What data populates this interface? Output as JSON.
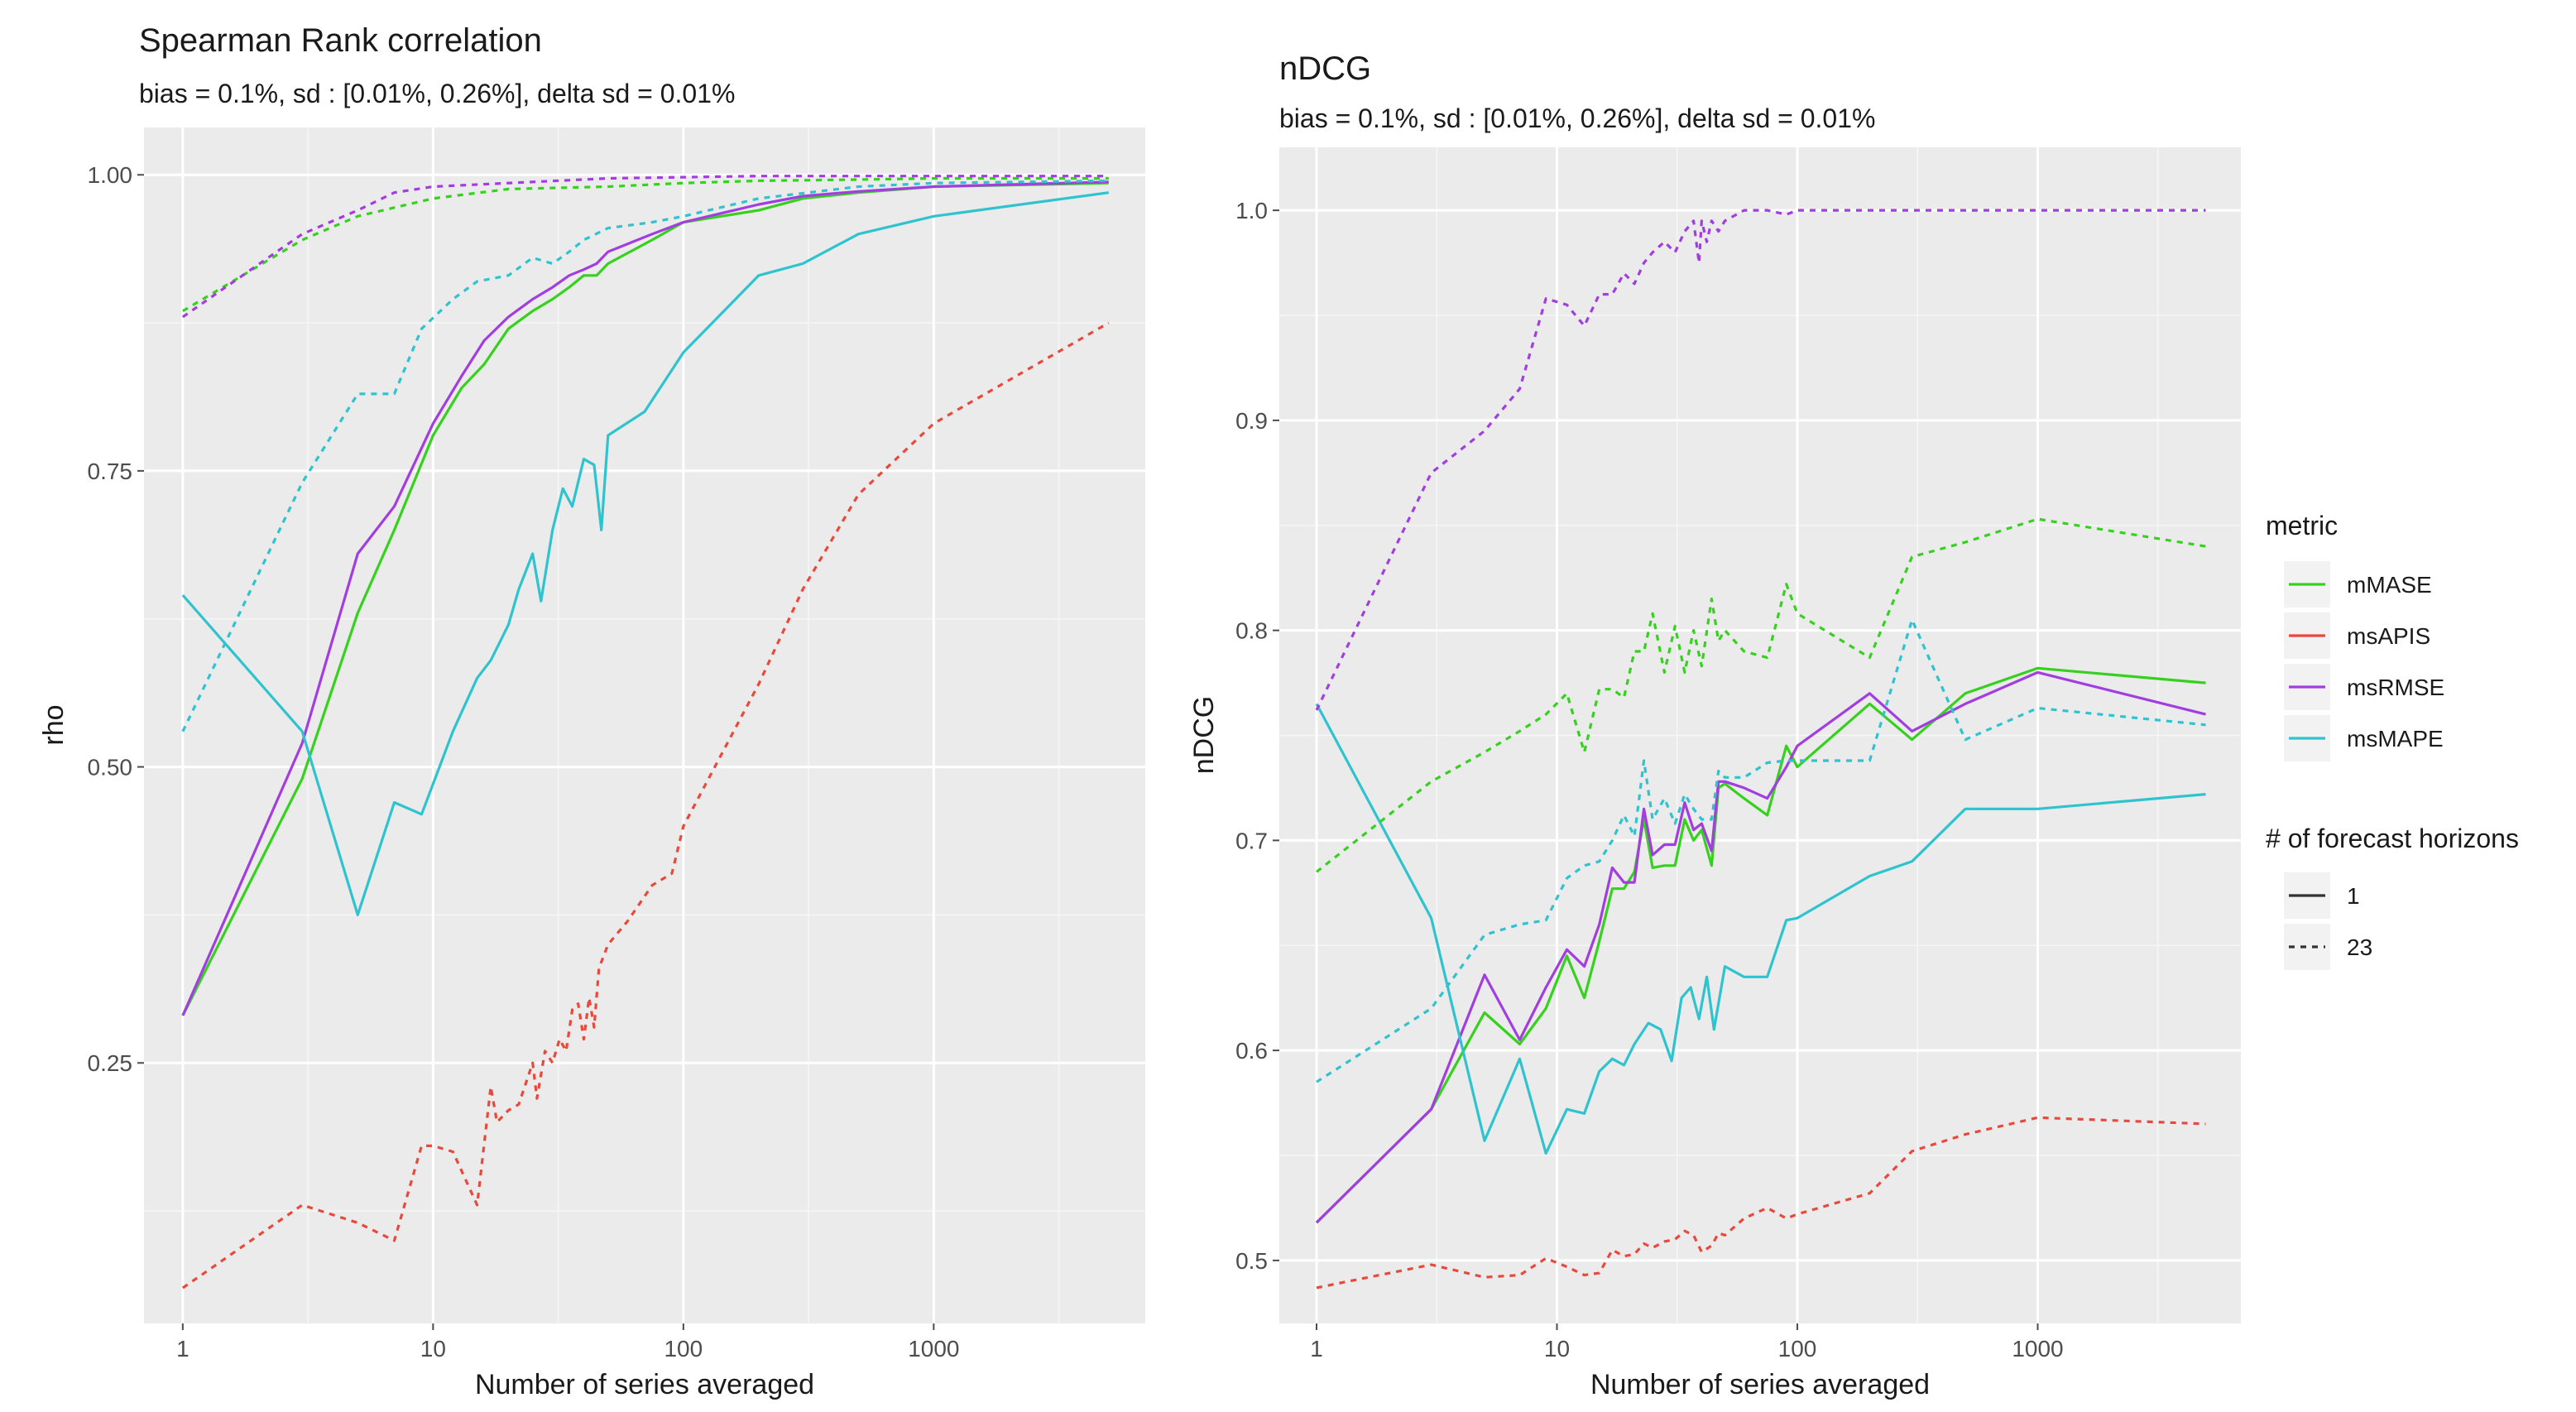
{
  "chart_data": [
    {
      "type": "line",
      "title": "Spearman Rank correlation",
      "subtitle": "bias = 0.1%, sd : [0.01%, 0.26%], delta sd = 0.01%",
      "xlabel": "Number of series averaged",
      "ylabel": "rho",
      "xscale": "log10",
      "xlim": [
        0.7,
        7000
      ],
      "ylim": [
        0.03,
        1.04
      ],
      "xticks": [
        1,
        10,
        100,
        1000
      ],
      "xtick_labels": [
        "1",
        "10",
        "100",
        "1000"
      ],
      "yticks": [
        0.25,
        0.5,
        0.75,
        1.0
      ],
      "ytick_labels": [
        "0.25",
        "0.50",
        "0.75",
        "1.00"
      ],
      "grid": true,
      "series": [
        {
          "name": "mMASE",
          "metric": "mMASE",
          "horizons": "1",
          "color": "#36d11e",
          "x": [
            1,
            3,
            5,
            7,
            10,
            13,
            16,
            20,
            25,
            30,
            35,
            40,
            45,
            50,
            75,
            100,
            200,
            300,
            500,
            1000,
            5000
          ],
          "y": [
            0.29,
            0.49,
            0.63,
            0.7,
            0.78,
            0.82,
            0.84,
            0.87,
            0.885,
            0.895,
            0.905,
            0.915,
            0.915,
            0.925,
            0.945,
            0.96,
            0.97,
            0.98,
            0.985,
            0.99,
            0.993
          ]
        },
        {
          "name": "msRMSE",
          "metric": "msRMSE",
          "horizons": "1",
          "color": "#a23ee0",
          "x": [
            1,
            3,
            5,
            7,
            10,
            13,
            16,
            20,
            25,
            30,
            35,
            40,
            45,
            50,
            75,
            100,
            200,
            300,
            500,
            1000,
            5000
          ],
          "y": [
            0.29,
            0.52,
            0.68,
            0.72,
            0.79,
            0.83,
            0.86,
            0.88,
            0.895,
            0.905,
            0.915,
            0.92,
            0.925,
            0.935,
            0.95,
            0.96,
            0.975,
            0.982,
            0.986,
            0.99,
            0.994
          ]
        },
        {
          "name": "msMAPE",
          "metric": "msMAPE",
          "horizons": "1",
          "color": "#2fc3cf",
          "x": [
            1,
            3,
            5,
            7,
            9,
            12,
            15,
            17,
            20,
            22,
            25,
            27,
            30,
            33,
            36,
            40,
            44,
            47,
            50,
            70,
            100,
            200,
            300,
            500,
            1000,
            5000
          ],
          "y": [
            0.645,
            0.53,
            0.375,
            0.47,
            0.46,
            0.53,
            0.575,
            0.59,
            0.62,
            0.65,
            0.68,
            0.64,
            0.7,
            0.735,
            0.72,
            0.76,
            0.755,
            0.7,
            0.78,
            0.8,
            0.85,
            0.915,
            0.925,
            0.95,
            0.965,
            0.985
          ]
        },
        {
          "name": "mMASE",
          "metric": "mMASE",
          "horizons": "23",
          "color": "#36d11e",
          "x": [
            1,
            3,
            5,
            10,
            20,
            50,
            100,
            200,
            500,
            1000,
            5000
          ],
          "y": [
            0.885,
            0.945,
            0.965,
            0.98,
            0.988,
            0.99,
            0.993,
            0.995,
            0.996,
            0.997,
            0.997
          ]
        },
        {
          "name": "msAPIS",
          "metric": "msAPIS",
          "horizons": "23",
          "color": "#e8493b",
          "x": [
            1,
            3,
            5,
            7,
            9,
            10,
            12,
            15,
            17,
            18,
            20,
            22,
            25,
            26,
            28,
            30,
            32,
            34,
            36,
            38,
            40,
            42,
            44,
            46,
            50,
            60,
            75,
            90,
            100,
            200,
            300,
            500,
            1000,
            5000
          ],
          "y": [
            0.06,
            0.13,
            0.115,
            0.1,
            0.18,
            0.18,
            0.175,
            0.13,
            0.23,
            0.2,
            0.21,
            0.215,
            0.25,
            0.22,
            0.26,
            0.25,
            0.27,
            0.26,
            0.295,
            0.3,
            0.27,
            0.305,
            0.28,
            0.33,
            0.35,
            0.37,
            0.4,
            0.41,
            0.45,
            0.57,
            0.65,
            0.73,
            0.79,
            0.875
          ]
        },
        {
          "name": "msRMSE",
          "metric": "msRMSE",
          "horizons": "23",
          "color": "#a23ee0",
          "x": [
            1,
            3,
            5,
            7,
            10,
            20,
            50,
            100,
            200,
            500,
            1000,
            5000
          ],
          "y": [
            0.88,
            0.95,
            0.97,
            0.985,
            0.99,
            0.993,
            0.997,
            0.998,
            0.999,
            0.999,
            0.999,
            0.999
          ]
        },
        {
          "name": "msMAPE",
          "metric": "msMAPE",
          "horizons": "23",
          "color": "#2fc3cf",
          "x": [
            1,
            3,
            5,
            7,
            9,
            12,
            15,
            20,
            25,
            30,
            35,
            40,
            50,
            75,
            100,
            200,
            500,
            1000,
            5000
          ],
          "y": [
            0.53,
            0.74,
            0.815,
            0.815,
            0.87,
            0.895,
            0.91,
            0.915,
            0.93,
            0.925,
            0.935,
            0.945,
            0.955,
            0.96,
            0.965,
            0.98,
            0.99,
            0.993,
            0.995
          ]
        }
      ]
    },
    {
      "type": "line",
      "title": "nDCG",
      "subtitle": "bias = 0.1%, sd : [0.01%, 0.26%], delta sd = 0.01%",
      "xlabel": "Number of series averaged",
      "ylabel": "nDCG",
      "xscale": "log10",
      "xlim": [
        0.7,
        7000
      ],
      "ylim": [
        0.47,
        1.03
      ],
      "xticks": [
        1,
        10,
        100,
        1000
      ],
      "xtick_labels": [
        "1",
        "10",
        "100",
        "1000"
      ],
      "yticks": [
        0.5,
        0.6,
        0.7,
        0.8,
        0.9,
        1.0
      ],
      "ytick_labels": [
        "0.5",
        "0.6",
        "0.7",
        "0.8",
        "0.9",
        "1.0"
      ],
      "grid": true,
      "series": [
        {
          "name": "mMASE",
          "metric": "mMASE",
          "horizons": "1",
          "color": "#36d11e",
          "x": [
            1,
            3,
            5,
            7,
            9,
            11,
            13,
            15,
            17,
            19,
            21,
            23,
            25,
            28,
            31,
            34,
            37,
            40,
            44,
            47,
            50,
            60,
            75,
            90,
            100,
            200,
            300,
            500,
            1000,
            5000
          ],
          "y": [
            0.518,
            0.572,
            0.618,
            0.603,
            0.62,
            0.645,
            0.625,
            0.652,
            0.677,
            0.677,
            0.685,
            0.71,
            0.687,
            0.688,
            0.688,
            0.71,
            0.7,
            0.705,
            0.688,
            0.725,
            0.727,
            0.72,
            0.712,
            0.745,
            0.735,
            0.765,
            0.748,
            0.77,
            0.782,
            0.775
          ]
        },
        {
          "name": "msRMSE",
          "metric": "msRMSE",
          "horizons": "1",
          "color": "#a23ee0",
          "x": [
            1,
            3,
            5,
            7,
            9,
            11,
            13,
            15,
            17,
            19,
            21,
            23,
            25,
            28,
            31,
            34,
            37,
            40,
            44,
            47,
            50,
            60,
            75,
            90,
            100,
            200,
            300,
            500,
            1000,
            5000
          ],
          "y": [
            0.518,
            0.572,
            0.636,
            0.605,
            0.63,
            0.648,
            0.64,
            0.66,
            0.687,
            0.68,
            0.68,
            0.715,
            0.693,
            0.698,
            0.698,
            0.718,
            0.705,
            0.708,
            0.695,
            0.728,
            0.728,
            0.725,
            0.72,
            0.735,
            0.745,
            0.77,
            0.752,
            0.765,
            0.78,
            0.76
          ]
        },
        {
          "name": "msMAPE",
          "metric": "msMAPE",
          "horizons": "1",
          "color": "#2fc3cf",
          "x": [
            1,
            3,
            5,
            7,
            9,
            11,
            13,
            15,
            17,
            19,
            21,
            24,
            27,
            30,
            33,
            36,
            39,
            42,
            45,
            50,
            60,
            75,
            90,
            100,
            200,
            300,
            500,
            1000,
            5000
          ],
          "y": [
            0.765,
            0.663,
            0.557,
            0.596,
            0.551,
            0.572,
            0.57,
            0.59,
            0.596,
            0.593,
            0.603,
            0.613,
            0.61,
            0.595,
            0.625,
            0.63,
            0.615,
            0.635,
            0.61,
            0.64,
            0.635,
            0.635,
            0.662,
            0.663,
            0.683,
            0.69,
            0.715,
            0.715,
            0.722
          ]
        },
        {
          "name": "mMASE",
          "metric": "mMASE",
          "horizons": "23",
          "color": "#36d11e",
          "x": [
            1,
            3,
            5,
            7,
            9,
            11,
            13,
            15,
            17,
            19,
            21,
            23,
            25,
            28,
            31,
            34,
            37,
            40,
            44,
            47,
            50,
            60,
            75,
            90,
            100,
            200,
            300,
            500,
            1000,
            5000
          ],
          "y": [
            0.685,
            0.728,
            0.742,
            0.752,
            0.76,
            0.77,
            0.742,
            0.772,
            0.772,
            0.768,
            0.79,
            0.79,
            0.808,
            0.78,
            0.802,
            0.78,
            0.8,
            0.783,
            0.815,
            0.795,
            0.8,
            0.79,
            0.787,
            0.822,
            0.808,
            0.787,
            0.835,
            0.842,
            0.853,
            0.84
          ]
        },
        {
          "name": "msAPIS",
          "metric": "msAPIS",
          "horizons": "23",
          "color": "#e8493b",
          "x": [
            1,
            3,
            5,
            7,
            9,
            11,
            13,
            15,
            17,
            19,
            21,
            23,
            25,
            28,
            31,
            34,
            37,
            40,
            44,
            47,
            50,
            60,
            75,
            90,
            100,
            200,
            300,
            500,
            1000,
            5000
          ],
          "y": [
            0.487,
            0.498,
            0.492,
            0.493,
            0.501,
            0.497,
            0.493,
            0.494,
            0.505,
            0.502,
            0.503,
            0.508,
            0.506,
            0.509,
            0.51,
            0.514,
            0.512,
            0.504,
            0.507,
            0.513,
            0.512,
            0.52,
            0.525,
            0.52,
            0.522,
            0.532,
            0.552,
            0.56,
            0.568,
            0.565
          ]
        },
        {
          "name": "msRMSE",
          "metric": "msRMSE",
          "horizons": "23",
          "color": "#a23ee0",
          "x": [
            1,
            3,
            5,
            7,
            9,
            11,
            13,
            15,
            17,
            19,
            21,
            23,
            25,
            28,
            31,
            34,
            37,
            39,
            40,
            42,
            44,
            47,
            50,
            60,
            75,
            90,
            100,
            200,
            300,
            500,
            1000,
            5000
          ],
          "y": [
            0.762,
            0.875,
            0.895,
            0.915,
            0.958,
            0.955,
            0.945,
            0.96,
            0.96,
            0.97,
            0.965,
            0.975,
            0.98,
            0.985,
            0.98,
            0.99,
            0.995,
            0.975,
            0.995,
            0.985,
            0.995,
            0.99,
            0.995,
            1.0,
            1.0,
            0.998,
            1.0,
            1.0,
            1.0,
            1.0,
            1.0,
            1.0
          ]
        },
        {
          "name": "msMAPE",
          "metric": "msMAPE",
          "horizons": "23",
          "color": "#2fc3cf",
          "x": [
            1,
            3,
            5,
            7,
            9,
            11,
            13,
            15,
            17,
            19,
            21,
            23,
            25,
            28,
            31,
            34,
            37,
            40,
            44,
            47,
            50,
            60,
            75,
            90,
            100,
            200,
            300,
            500,
            1000,
            5000
          ],
          "y": [
            0.585,
            0.62,
            0.655,
            0.66,
            0.662,
            0.682,
            0.688,
            0.69,
            0.7,
            0.712,
            0.702,
            0.738,
            0.71,
            0.72,
            0.708,
            0.722,
            0.715,
            0.71,
            0.71,
            0.733,
            0.73,
            0.73,
            0.737,
            0.738,
            0.738,
            0.738,
            0.805,
            0.748,
            0.763,
            0.755
          ]
        }
      ]
    }
  ],
  "legend": {
    "metric_title": "metric",
    "metric_items": [
      {
        "label": "mMASE",
        "color": "#36d11e"
      },
      {
        "label": "msAPIS",
        "color": "#e8493b"
      },
      {
        "label": "msRMSE",
        "color": "#a23ee0"
      },
      {
        "label": "msMAPE",
        "color": "#2fc3cf"
      }
    ],
    "horizon_title": "# of forecast horizons",
    "horizon_items": [
      {
        "label": "1",
        "dash": "solid"
      },
      {
        "label": "23",
        "dash": "dotted"
      }
    ]
  }
}
